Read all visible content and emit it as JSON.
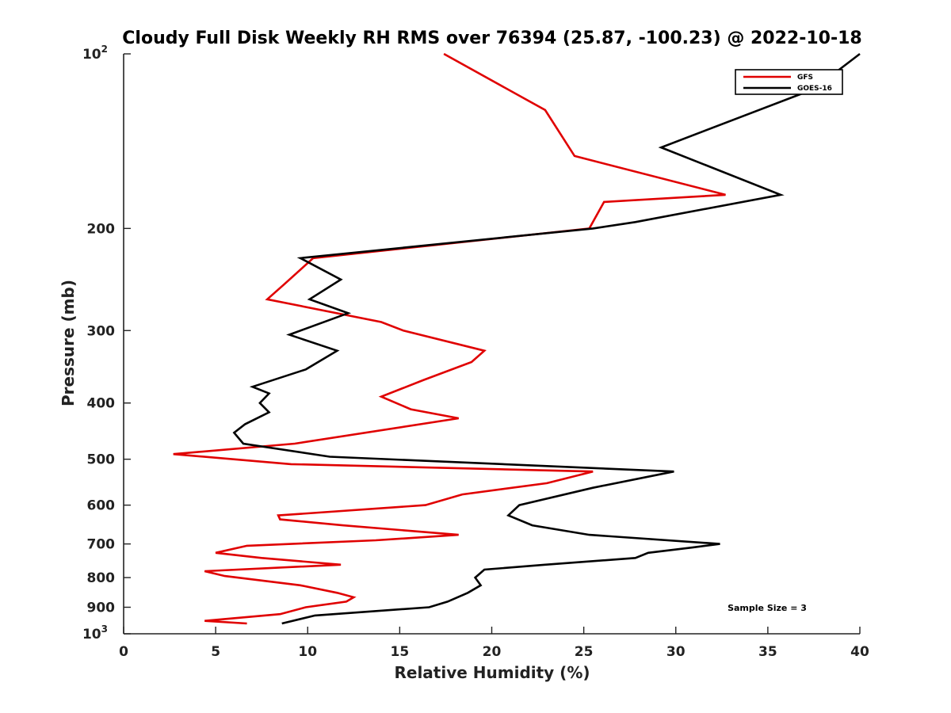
{
  "chart_data": {
    "type": "line",
    "title": "Cloudy Full Disk Weekly RH RMS over 76394 (25.87, -100.23) @ 2022-10-18",
    "xlabel": "Relative Humidity (%)",
    "ylabel": "Pressure (mb)",
    "xlim": [
      0,
      40
    ],
    "ylim": [
      100,
      1000
    ],
    "yscale": "log",
    "y_reversed": true,
    "grid": false,
    "legend_position": "top-right",
    "x_ticks": [
      "0",
      "5",
      "10",
      "15",
      "20",
      "25",
      "30",
      "35",
      "40"
    ],
    "y_ticks": [
      {
        "value": 100,
        "base": "10",
        "exp": "2"
      },
      {
        "value": 200,
        "label": "200"
      },
      {
        "value": 300,
        "label": "300"
      },
      {
        "value": 400,
        "label": "400"
      },
      {
        "value": 500,
        "label": "500"
      },
      {
        "value": 600,
        "label": "600"
      },
      {
        "value": 700,
        "label": "700"
      },
      {
        "value": 800,
        "label": "800"
      },
      {
        "value": 900,
        "label": "900"
      },
      {
        "value": 1000,
        "base": "10",
        "exp": "3"
      }
    ],
    "annotation": "Sample Size = 3",
    "series": [
      {
        "name": "GFS",
        "color": "#e00000",
        "points": [
          [
            17.4,
            100
          ],
          [
            22.9,
            125
          ],
          [
            24.5,
            150
          ],
          [
            32.7,
            175
          ],
          [
            26.1,
            180
          ],
          [
            25.3,
            200
          ],
          [
            10.3,
            225
          ],
          [
            8.7,
            250
          ],
          [
            7.8,
            265
          ],
          [
            14.0,
            290
          ],
          [
            15.2,
            300
          ],
          [
            19.6,
            325
          ],
          [
            18.9,
            340
          ],
          [
            16.3,
            365
          ],
          [
            14.0,
            390
          ],
          [
            15.6,
            410
          ],
          [
            18.2,
            425
          ],
          [
            9.3,
            470
          ],
          [
            2.7,
            490
          ],
          [
            9.1,
            510
          ],
          [
            25.5,
            525
          ],
          [
            23.0,
            550
          ],
          [
            18.4,
            575
          ],
          [
            16.4,
            600
          ],
          [
            8.4,
            625
          ],
          [
            8.5,
            635
          ],
          [
            11.9,
            650
          ],
          [
            18.2,
            675
          ],
          [
            13.7,
            690
          ],
          [
            6.7,
            705
          ],
          [
            5.0,
            725
          ],
          [
            7.5,
            740
          ],
          [
            11.8,
            760
          ],
          [
            4.4,
            780
          ],
          [
            5.5,
            795
          ],
          [
            9.6,
            825
          ],
          [
            11.6,
            850
          ],
          [
            12.5,
            865
          ],
          [
            12.1,
            880
          ],
          [
            9.9,
            900
          ],
          [
            8.5,
            925
          ],
          [
            4.4,
            950
          ],
          [
            6.7,
            960
          ]
        ]
      },
      {
        "name": "GOES-16",
        "color": "#000000",
        "points": [
          [
            40.0,
            100
          ],
          [
            37.5,
            115
          ],
          [
            29.2,
            145
          ],
          [
            35.7,
            175
          ],
          [
            27.8,
            195
          ],
          [
            25.5,
            200
          ],
          [
            9.6,
            225
          ],
          [
            11.8,
            245
          ],
          [
            10.1,
            265
          ],
          [
            12.2,
            280
          ],
          [
            9.0,
            305
          ],
          [
            11.6,
            325
          ],
          [
            9.9,
            350
          ],
          [
            7.0,
            375
          ],
          [
            7.9,
            385
          ],
          [
            7.4,
            400
          ],
          [
            7.9,
            415
          ],
          [
            6.6,
            435
          ],
          [
            6.0,
            450
          ],
          [
            6.5,
            470
          ],
          [
            11.2,
            495
          ],
          [
            29.9,
            525
          ],
          [
            25.5,
            560
          ],
          [
            21.5,
            600
          ],
          [
            20.9,
            625
          ],
          [
            22.2,
            650
          ],
          [
            25.3,
            675
          ],
          [
            32.4,
            700
          ],
          [
            30.9,
            710
          ],
          [
            28.5,
            725
          ],
          [
            27.8,
            740
          ],
          [
            22.9,
            760
          ],
          [
            19.6,
            775
          ],
          [
            19.1,
            800
          ],
          [
            19.4,
            825
          ],
          [
            18.7,
            850
          ],
          [
            17.6,
            880
          ],
          [
            16.6,
            900
          ],
          [
            10.4,
            930
          ],
          [
            8.6,
            960
          ]
        ]
      }
    ]
  }
}
